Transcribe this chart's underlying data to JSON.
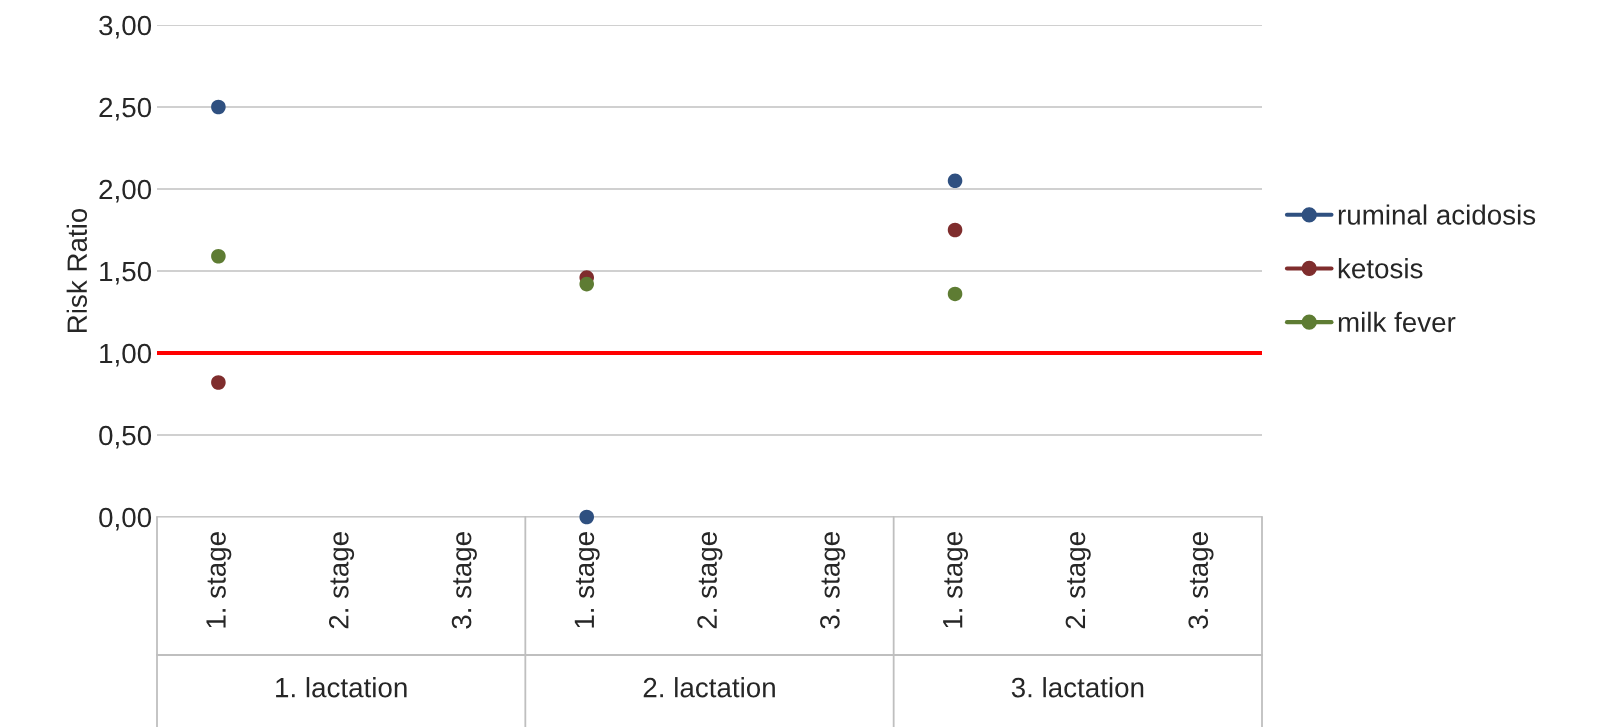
{
  "chart_data": {
    "type": "scatter",
    "ylabel": "Risk Ratio",
    "categories": [
      "1. stage",
      "2. stage",
      "3. stage",
      "1. stage",
      "2. stage",
      "3. stage",
      "1. stage",
      "2. stage",
      "3. stage"
    ],
    "series": [
      {
        "name": "ruminal acidosis",
        "color": "#2f5080",
        "values": [
          2.5,
          null,
          null,
          0.0,
          null,
          null,
          2.05,
          null,
          null
        ]
      },
      {
        "name": "ketosis",
        "color": "#7f2d2d",
        "values": [
          0.82,
          null,
          null,
          1.46,
          null,
          null,
          1.75,
          null,
          null
        ]
      },
      {
        "name": "milk fever",
        "color": "#5e7c33",
        "values": [
          1.59,
          null,
          null,
          1.42,
          null,
          null,
          1.36,
          null,
          null
        ]
      }
    ],
    "ylim": [
      0,
      3
    ],
    "yticks": [
      {
        "value": 0,
        "label": "0,00"
      },
      {
        "value": 0.5,
        "label": "0,50"
      },
      {
        "value": 1,
        "label": "1,00"
      },
      {
        "value": 1.5,
        "label": "1,50"
      },
      {
        "value": 2,
        "label": "2,00"
      },
      {
        "value": 2.5,
        "label": "2,50"
      },
      {
        "value": 3,
        "label": "3,00"
      }
    ],
    "ref_lines": [
      {
        "axis": "y",
        "value": 1,
        "color": "#ff0000"
      }
    ],
    "annotations": [
      "1. lactation",
      "2. lactation",
      "3. lactation"
    ],
    "grid": "y",
    "legend": "right",
    "marker": "circle"
  }
}
